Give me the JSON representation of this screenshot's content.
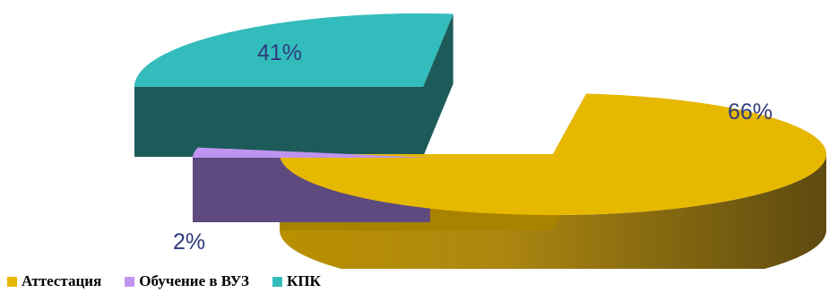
{
  "chart_data": {
    "type": "pie",
    "style": "3d-exploded",
    "title": "",
    "slices": [
      {
        "name": "Аттестация",
        "value": 66,
        "label": "66%",
        "color": "#e6b800"
      },
      {
        "name": "Обучение в ВУЗ",
        "value": 2,
        "label": "2%",
        "color": "#bf94f0"
      },
      {
        "name": "КПК",
        "value": 41,
        "label": "41%",
        "color": "#33bcbc"
      }
    ],
    "legend": {
      "position": "bottom-left",
      "entries": [
        "Аттестация",
        "Обучение в ВУЗ",
        "КПК"
      ]
    }
  }
}
